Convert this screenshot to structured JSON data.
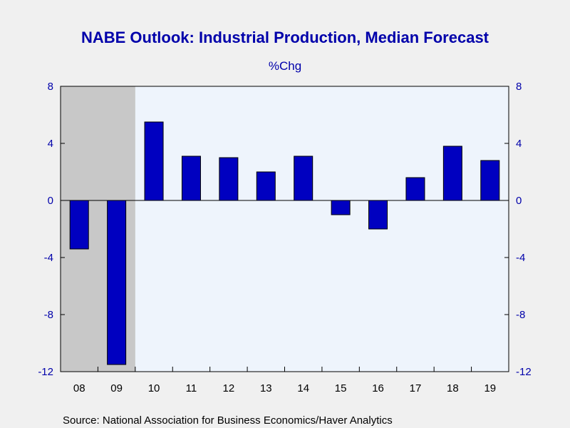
{
  "chart_data": {
    "type": "bar",
    "title": "NABE Outlook: Industrial Production, Median Forecast",
    "subtitle": "%Chg",
    "categories": [
      "08",
      "09",
      "10",
      "11",
      "12",
      "13",
      "14",
      "15",
      "16",
      "17",
      "18",
      "19"
    ],
    "values": [
      -3.4,
      -11.5,
      5.5,
      3.1,
      3.0,
      2.0,
      3.1,
      -1.0,
      -2.0,
      1.6,
      3.8,
      2.8
    ],
    "ylim": [
      -12,
      8
    ],
    "yticks": [
      "8",
      "4",
      "0",
      "-4",
      "-8",
      "-12"
    ],
    "ytick_values": [
      8,
      4,
      0,
      -4,
      -8,
      -12
    ],
    "recession_shading": [
      "08",
      "09"
    ],
    "grid": false,
    "source": "Source:  National Association for Business Economics/Haver Analytics",
    "colors": {
      "bar_fill": "#0000c0",
      "plot_background": "#eef4fc",
      "recession_fill": "#c8c8c8",
      "text_accent": "#0000aa"
    }
  }
}
